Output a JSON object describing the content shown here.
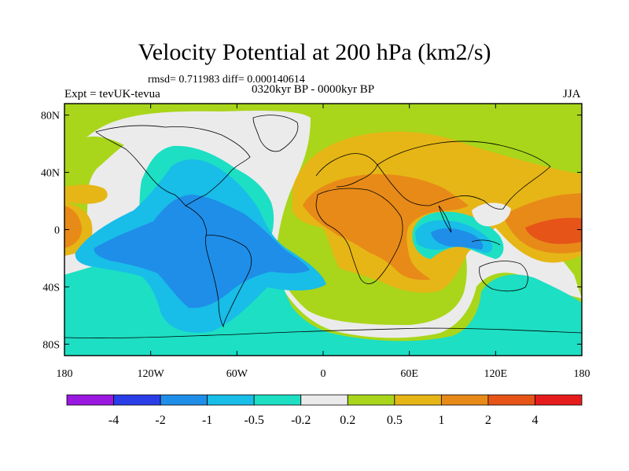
{
  "header": {
    "title": "Velocity Potential at 200 hPa (km2/s)",
    "stats": "rmsd= 0.711983 diff= 0.000140614",
    "experiment": "Expt = tevUK-tevua",
    "period": "0320kyr BP - 0000kyr BP",
    "season": "JJA"
  },
  "axes": {
    "lat_labels": [
      "80N",
      "40N",
      "0",
      "40S",
      "80S"
    ],
    "lat_values": [
      80,
      40,
      0,
      -40,
      -80
    ],
    "lon_labels": [
      "180",
      "120W",
      "60W",
      "0",
      "60E",
      "120E",
      "180"
    ],
    "lon_values": [
      -180,
      -120,
      -60,
      0,
      60,
      120,
      180
    ]
  },
  "colorbar": {
    "colors": [
      "#9a18e0",
      "#2a3ee8",
      "#1f8ee8",
      "#18bde8",
      "#1ddfc4",
      "#ebebeb",
      "#a9d61a",
      "#e6b616",
      "#e88a18",
      "#e65418",
      "#e61c1c"
    ],
    "labels": [
      "-4",
      "-2",
      "-1",
      "-0.5",
      "-0.2",
      "0.2",
      "0.5",
      "1",
      "2",
      "4"
    ]
  },
  "map": {
    "background_color": "#a9d61a"
  }
}
